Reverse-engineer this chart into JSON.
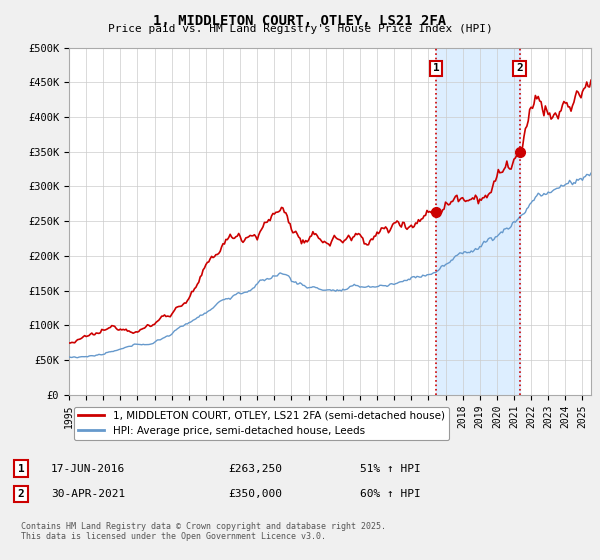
{
  "title": "1, MIDDLETON COURT, OTLEY, LS21 2FA",
  "subtitle": "Price paid vs. HM Land Registry's House Price Index (HPI)",
  "ylabel_ticks": [
    "£0",
    "£50K",
    "£100K",
    "£150K",
    "£200K",
    "£250K",
    "£300K",
    "£350K",
    "£400K",
    "£450K",
    "£500K"
  ],
  "ytick_values": [
    0,
    50000,
    100000,
    150000,
    200000,
    250000,
    300000,
    350000,
    400000,
    450000,
    500000
  ],
  "xlim_start": 1995.0,
  "xlim_end": 2025.5,
  "ylim": [
    0,
    500000
  ],
  "marker1_x": 2016.46,
  "marker1_y": 263250,
  "marker2_x": 2021.33,
  "marker2_y": 350000,
  "marker1_label": "1",
  "marker2_label": "2",
  "marker1_date": "17-JUN-2016",
  "marker1_price": "£263,250",
  "marker1_hpi": "51% ↑ HPI",
  "marker2_date": "30-APR-2021",
  "marker2_price": "£350,000",
  "marker2_hpi": "60% ↑ HPI",
  "line1_color": "#cc0000",
  "line2_color": "#6699cc",
  "vline_color": "#cc0000",
  "shade_color": "#ddeeff",
  "legend1_label": "1, MIDDLETON COURT, OTLEY, LS21 2FA (semi-detached house)",
  "legend2_label": "HPI: Average price, semi-detached house, Leeds",
  "footer": "Contains HM Land Registry data © Crown copyright and database right 2025.\nThis data is licensed under the Open Government Licence v3.0.",
  "background_color": "#f0f0f0",
  "plot_bg_color": "#ffffff"
}
